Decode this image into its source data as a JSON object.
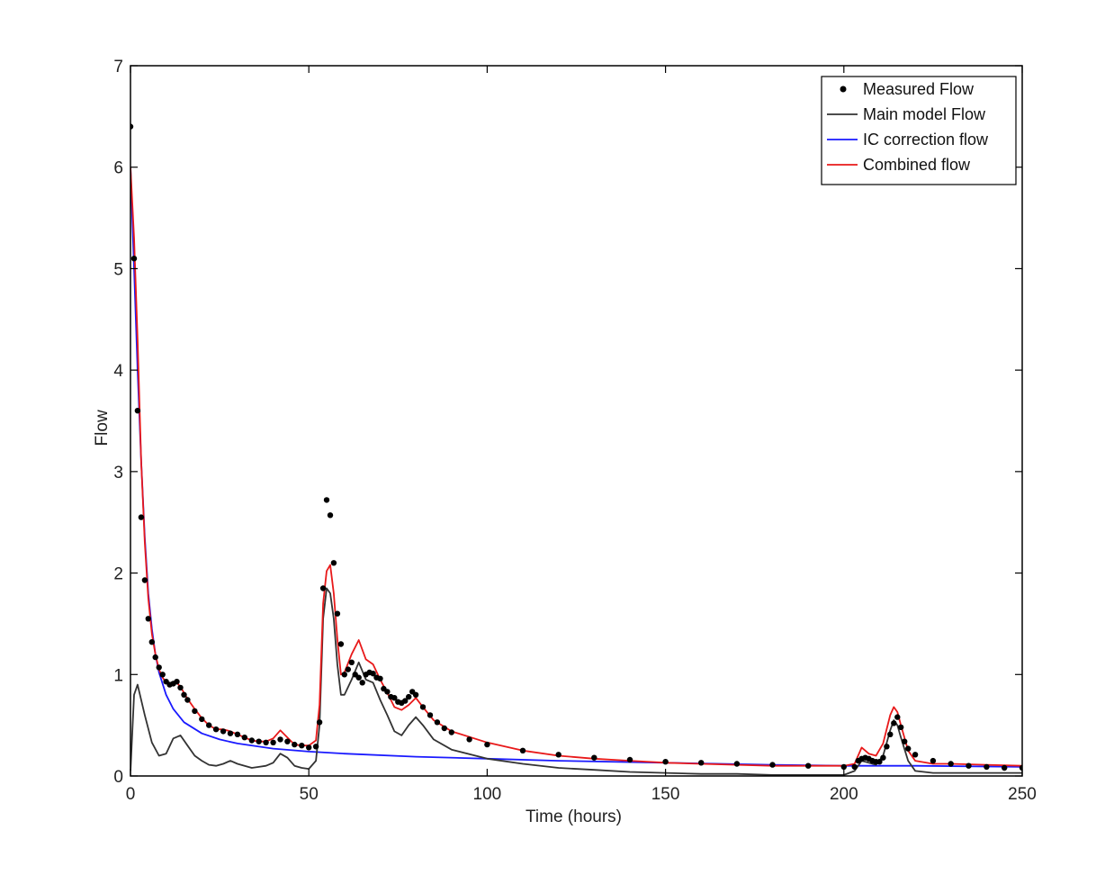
{
  "chart_data": {
    "type": "line",
    "title": "",
    "xlabel": "Time (hours)",
    "ylabel": "Flow",
    "xlim": [
      0,
      250
    ],
    "ylim": [
      0,
      7
    ],
    "grid": false,
    "legend_position": "top-right",
    "xticks": [
      0,
      50,
      100,
      150,
      200,
      250
    ],
    "yticks": [
      0,
      1,
      2,
      3,
      4,
      5,
      6,
      7
    ],
    "series": [
      {
        "name": "Measured Flow",
        "kind": "markers",
        "color": "#000000",
        "x": [
          0,
          1,
          2,
          3,
          4,
          5,
          6,
          7,
          8,
          9,
          10,
          11,
          12,
          13,
          14,
          15,
          16,
          18,
          20,
          22,
          24,
          26,
          28,
          30,
          32,
          34,
          36,
          38,
          40,
          42,
          44,
          46,
          48,
          50,
          52,
          53,
          54,
          55,
          56,
          57,
          58,
          59,
          60,
          61,
          62,
          63,
          64,
          65,
          66,
          67,
          68,
          69,
          70,
          71,
          72,
          73,
          74,
          75,
          76,
          77,
          78,
          79,
          80,
          82,
          84,
          86,
          88,
          90,
          95,
          100,
          110,
          120,
          130,
          140,
          150,
          160,
          170,
          180,
          190,
          200,
          203,
          204,
          205,
          206,
          207,
          208,
          209,
          210,
          211,
          212,
          213,
          214,
          215,
          216,
          217,
          218,
          220,
          225,
          230,
          235,
          240,
          245,
          250
        ],
        "y": [
          6.4,
          5.1,
          3.6,
          2.55,
          1.93,
          1.55,
          1.32,
          1.17,
          1.07,
          1.0,
          0.93,
          0.9,
          0.91,
          0.93,
          0.87,
          0.8,
          0.75,
          0.64,
          0.56,
          0.5,
          0.46,
          0.44,
          0.42,
          0.41,
          0.38,
          0.35,
          0.34,
          0.33,
          0.33,
          0.36,
          0.34,
          0.31,
          0.3,
          0.28,
          0.29,
          0.53,
          1.85,
          2.72,
          2.57,
          2.1,
          1.6,
          1.3,
          1.0,
          1.05,
          1.12,
          1.0,
          0.97,
          0.92,
          1.0,
          1.02,
          1.01,
          0.97,
          0.96,
          0.86,
          0.83,
          0.78,
          0.77,
          0.73,
          0.72,
          0.74,
          0.78,
          0.83,
          0.8,
          0.68,
          0.6,
          0.53,
          0.47,
          0.43,
          0.36,
          0.31,
          0.25,
          0.21,
          0.18,
          0.16,
          0.14,
          0.13,
          0.12,
          0.11,
          0.1,
          0.09,
          0.09,
          0.15,
          0.17,
          0.18,
          0.17,
          0.15,
          0.14,
          0.14,
          0.18,
          0.29,
          0.41,
          0.52,
          0.58,
          0.48,
          0.34,
          0.27,
          0.21,
          0.15,
          0.12,
          0.1,
          0.09,
          0.08,
          0.08
        ]
      },
      {
        "name": "Main model Flow",
        "kind": "line",
        "color": "#333333",
        "x": [
          0,
          1,
          2,
          4,
          6,
          8,
          10,
          12,
          14,
          16,
          18,
          20,
          22,
          24,
          26,
          28,
          30,
          32,
          34,
          36,
          38,
          40,
          42,
          44,
          46,
          48,
          50,
          52,
          53,
          54,
          55,
          56,
          57,
          58,
          59,
          60,
          62,
          64,
          66,
          68,
          70,
          72,
          74,
          76,
          78,
          80,
          82,
          85,
          90,
          100,
          110,
          120,
          130,
          140,
          150,
          160,
          170,
          180,
          190,
          200,
          203,
          205,
          207,
          209,
          211,
          213,
          214,
          215,
          216,
          218,
          220,
          225,
          230,
          240,
          250
        ],
        "y": [
          0.05,
          0.8,
          0.9,
          0.6,
          0.33,
          0.2,
          0.22,
          0.37,
          0.4,
          0.3,
          0.2,
          0.15,
          0.11,
          0.1,
          0.12,
          0.15,
          0.12,
          0.1,
          0.08,
          0.09,
          0.1,
          0.13,
          0.22,
          0.18,
          0.1,
          0.08,
          0.07,
          0.15,
          0.5,
          1.55,
          1.85,
          1.8,
          1.55,
          1.1,
          0.8,
          0.8,
          0.95,
          1.12,
          0.95,
          0.92,
          0.75,
          0.6,
          0.44,
          0.4,
          0.5,
          0.58,
          0.5,
          0.36,
          0.26,
          0.17,
          0.12,
          0.08,
          0.06,
          0.04,
          0.03,
          0.02,
          0.02,
          0.01,
          0.01,
          0.01,
          0.05,
          0.15,
          0.13,
          0.11,
          0.2,
          0.45,
          0.55,
          0.5,
          0.38,
          0.15,
          0.05,
          0.03,
          0.03,
          0.03,
          0.03
        ]
      },
      {
        "name": "IC correction flow",
        "kind": "line",
        "color": "#1a1aff",
        "x": [
          0,
          1,
          2,
          3,
          4,
          5,
          6,
          7,
          8,
          10,
          12,
          15,
          20,
          25,
          30,
          40,
          50,
          60,
          80,
          100,
          120,
          150,
          180,
          200,
          220,
          250
        ],
        "y": [
          6.0,
          5.0,
          4.0,
          3.1,
          2.35,
          1.8,
          1.45,
          1.2,
          1.02,
          0.8,
          0.66,
          0.53,
          0.42,
          0.36,
          0.32,
          0.27,
          0.24,
          0.22,
          0.19,
          0.17,
          0.15,
          0.13,
          0.11,
          0.1,
          0.1,
          0.09
        ]
      },
      {
        "name": "Combined flow",
        "kind": "line",
        "color": "#e8191a",
        "x": [
          0,
          1,
          2,
          3,
          4,
          5,
          6,
          7,
          8,
          9,
          10,
          11,
          12,
          13,
          14,
          16,
          18,
          20,
          22,
          24,
          26,
          28,
          30,
          32,
          34,
          36,
          38,
          40,
          42,
          44,
          46,
          48,
          50,
          52,
          53,
          54,
          55,
          56,
          57,
          58,
          59,
          60,
          62,
          64,
          66,
          68,
          70,
          72,
          74,
          76,
          78,
          80,
          82,
          85,
          90,
          100,
          110,
          120,
          130,
          140,
          150,
          160,
          170,
          180,
          190,
          200,
          203,
          205,
          207,
          209,
          211,
          213,
          214,
          215,
          216,
          218,
          220,
          225,
          230,
          240,
          250
        ],
        "y": [
          6.0,
          5.3,
          4.3,
          3.1,
          2.3,
          1.75,
          1.4,
          1.2,
          1.05,
          0.97,
          0.92,
          0.9,
          0.92,
          0.92,
          0.88,
          0.76,
          0.66,
          0.57,
          0.5,
          0.46,
          0.46,
          0.44,
          0.41,
          0.38,
          0.35,
          0.34,
          0.34,
          0.37,
          0.45,
          0.38,
          0.31,
          0.3,
          0.3,
          0.35,
          0.7,
          1.7,
          2.02,
          2.08,
          1.8,
          1.35,
          1.0,
          1.02,
          1.2,
          1.34,
          1.15,
          1.1,
          0.95,
          0.82,
          0.68,
          0.65,
          0.7,
          0.77,
          0.68,
          0.55,
          0.44,
          0.33,
          0.25,
          0.2,
          0.17,
          0.15,
          0.13,
          0.12,
          0.11,
          0.1,
          0.1,
          0.1,
          0.12,
          0.28,
          0.22,
          0.2,
          0.32,
          0.6,
          0.68,
          0.63,
          0.5,
          0.25,
          0.15,
          0.12,
          0.12,
          0.11,
          0.1
        ]
      }
    ]
  }
}
